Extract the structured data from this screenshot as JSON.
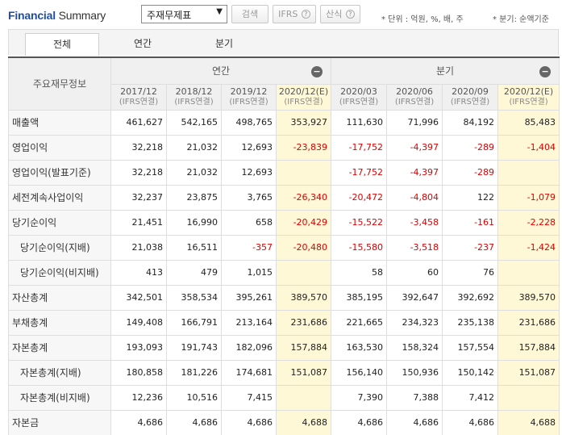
{
  "header": {
    "title_part1": "Financial",
    "title_part2": "Summary",
    "select_value": "주재무제표",
    "search_label": "검색",
    "ifrs_label": "IFRS",
    "calc_label": "산식",
    "help_glyph": "?",
    "unit_note": "* 단위 : 억원, %, 배, 주",
    "quarter_note": "* 분기: 순액기준"
  },
  "tabs": [
    "전체",
    "연간",
    "분기"
  ],
  "table": {
    "row_header": "주요재무정보",
    "group_annual": "연간",
    "group_quarter": "분기",
    "collapse_glyph": "−",
    "columns": [
      {
        "period": "2017/12",
        "basis": "(IFRS연결)",
        "estimate": false
      },
      {
        "period": "2018/12",
        "basis": "(IFRS연결)",
        "estimate": false
      },
      {
        "period": "2019/12",
        "basis": "(IFRS연결)",
        "estimate": false
      },
      {
        "period": "2020/12(E)",
        "basis": "(IFRS연결)",
        "estimate": true
      },
      {
        "period": "2020/03",
        "basis": "(IFRS연결)",
        "estimate": false
      },
      {
        "period": "2020/06",
        "basis": "(IFRS연결)",
        "estimate": false
      },
      {
        "period": "2020/09",
        "basis": "(IFRS연결)",
        "estimate": false
      },
      {
        "period": "2020/12(E)",
        "basis": "(IFRS연결)",
        "estimate": true
      }
    ],
    "rows": [
      {
        "label": "매출액",
        "indent": false,
        "values": [
          "461,627",
          "542,165",
          "498,765",
          "353,927",
          "111,630",
          "71,996",
          "84,192",
          "85,483"
        ]
      },
      {
        "label": "영업이익",
        "indent": false,
        "values": [
          "32,218",
          "21,032",
          "12,693",
          "-23,839",
          "-17,752",
          "-4,397",
          "-289",
          "-1,404"
        ]
      },
      {
        "label": "영업이익(발표기준)",
        "indent": false,
        "values": [
          "32,218",
          "21,032",
          "12,693",
          "",
          "-17,752",
          "-4,397",
          "-289",
          ""
        ]
      },
      {
        "label": "세전계속사업이익",
        "indent": false,
        "values": [
          "32,237",
          "23,875",
          "3,765",
          "-26,340",
          "-20,472",
          "-4,804",
          "122",
          "-1,079"
        ]
      },
      {
        "label": "당기순이익",
        "indent": false,
        "values": [
          "21,451",
          "16,990",
          "658",
          "-20,429",
          "-15,522",
          "-3,458",
          "-161",
          "-2,228"
        ]
      },
      {
        "label": "당기순이익(지배)",
        "indent": true,
        "values": [
          "21,038",
          "16,511",
          "-357",
          "-20,480",
          "-15,580",
          "-3,518",
          "-237",
          "-1,424"
        ]
      },
      {
        "label": "당기순이익(비지배)",
        "indent": true,
        "values": [
          "413",
          "479",
          "1,015",
          "",
          "58",
          "60",
          "76",
          ""
        ]
      },
      {
        "label": "자산총계",
        "indent": false,
        "values": [
          "342,501",
          "358,534",
          "395,261",
          "389,570",
          "385,195",
          "392,647",
          "392,692",
          "389,570"
        ]
      },
      {
        "label": "부채총계",
        "indent": false,
        "values": [
          "149,408",
          "166,791",
          "213,164",
          "231,686",
          "221,665",
          "234,323",
          "235,138",
          "231,686"
        ]
      },
      {
        "label": "자본총계",
        "indent": false,
        "values": [
          "193,093",
          "191,743",
          "182,096",
          "157,884",
          "163,530",
          "158,324",
          "157,554",
          "157,884"
        ]
      },
      {
        "label": "자본총계(지배)",
        "indent": true,
        "values": [
          "180,858",
          "181,226",
          "174,681",
          "151,087",
          "156,140",
          "150,936",
          "150,142",
          "151,087"
        ]
      },
      {
        "label": "자본총계(비지배)",
        "indent": true,
        "values": [
          "12,236",
          "10,516",
          "7,415",
          "",
          "7,390",
          "7,388",
          "7,412",
          ""
        ]
      },
      {
        "label": "자본금",
        "indent": false,
        "values": [
          "4,686",
          "4,686",
          "4,686",
          "4,688",
          "4,686",
          "4,686",
          "4,686",
          "4,688"
        ]
      }
    ]
  },
  "colors": {
    "title_blue": "#1e4fa8",
    "estimate_bg": "#fff8d6",
    "negative_red": "#e00000"
  }
}
